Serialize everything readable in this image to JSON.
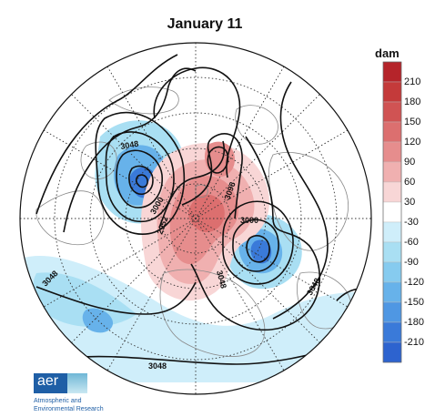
{
  "title": "January 11",
  "colorbar": {
    "unit": "dam",
    "labels": [
      "210",
      "180",
      "150",
      "120",
      "90",
      "60",
      "30",
      "-30",
      "-60",
      "-90",
      "-120",
      "-150",
      "-180",
      "-210"
    ],
    "colors": [
      "#b5242a",
      "#c43a3a",
      "#d05353",
      "#dc6f6f",
      "#e68d8d",
      "#f0b0b0",
      "#f8d6d6",
      "#ffffff",
      "#cfeefa",
      "#a9dff3",
      "#86cbef",
      "#67b2ea",
      "#4f97e3",
      "#3a7ad9",
      "#2d63cf"
    ]
  },
  "contour_labels": [
    "3048",
    "3048",
    "3048",
    "3048",
    "3048",
    "2952",
    "3000",
    "3000",
    "3096"
  ],
  "logo": {
    "text": "aer",
    "org_line1": "Atmospheric and",
    "org_line2": "Environmental Research"
  }
}
